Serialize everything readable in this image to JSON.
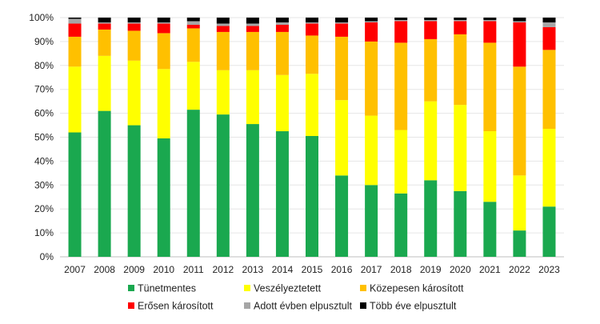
{
  "chart_data": {
    "type": "bar",
    "stacked": true,
    "categories": [
      "2007",
      "2008",
      "2009",
      "2010",
      "2011",
      "2012",
      "2013",
      "2014",
      "2015",
      "2016",
      "2017",
      "2018",
      "2019",
      "2020",
      "2021",
      "2022",
      "2023"
    ],
    "ylim": [
      0,
      100
    ],
    "yticks": [
      "0%",
      "10%",
      "20%",
      "30%",
      "40%",
      "50%",
      "60%",
      "70%",
      "80%",
      "90%",
      "100%"
    ],
    "grid": true,
    "legend_position": "bottom",
    "series": [
      {
        "name": "Tünetmentes",
        "color": "#1aa84f",
        "values": [
          52,
          61,
          55,
          49.5,
          61.5,
          59.5,
          55.5,
          52.5,
          50.5,
          34,
          30,
          26.5,
          32,
          27.5,
          23,
          11,
          21
        ]
      },
      {
        "name": "Veszélyeztetett",
        "color": "#ffff00",
        "values": [
          27.5,
          23,
          27,
          29,
          20,
          18.5,
          22.5,
          23.5,
          26,
          31.5,
          29,
          26.5,
          33,
          36,
          29.5,
          23,
          32.5
        ]
      },
      {
        "name": "Közepesen károsított",
        "color": "#ffc000",
        "values": [
          12.5,
          11,
          12.5,
          15,
          14,
          16,
          16,
          18,
          16,
          26.5,
          31,
          36.5,
          26,
          29.5,
          37,
          45.5,
          33
        ]
      },
      {
        "name": "Erősen károsított",
        "color": "#ff0000",
        "values": [
          5.5,
          2.5,
          3,
          4,
          1.5,
          2.5,
          2.5,
          3,
          5,
          5.5,
          8,
          9,
          7.5,
          5.5,
          9,
          18.5,
          9.5
        ]
      },
      {
        "name": "Adott évben elpusztult",
        "color": "#a6a6a6",
        "values": [
          2,
          0.5,
          0.5,
          0.5,
          1.5,
          1,
          1,
          1,
          0.5,
          0.5,
          0.5,
          0.5,
          0.5,
          0.5,
          0.5,
          0.5,
          2
        ]
      },
      {
        "name": "Több éve elpusztult",
        "color": "#000000",
        "values": [
          0.5,
          2,
          2,
          2,
          1.5,
          2.5,
          2.5,
          2,
          2,
          2,
          1.5,
          1,
          1,
          1,
          1,
          1.5,
          2
        ]
      }
    ]
  }
}
